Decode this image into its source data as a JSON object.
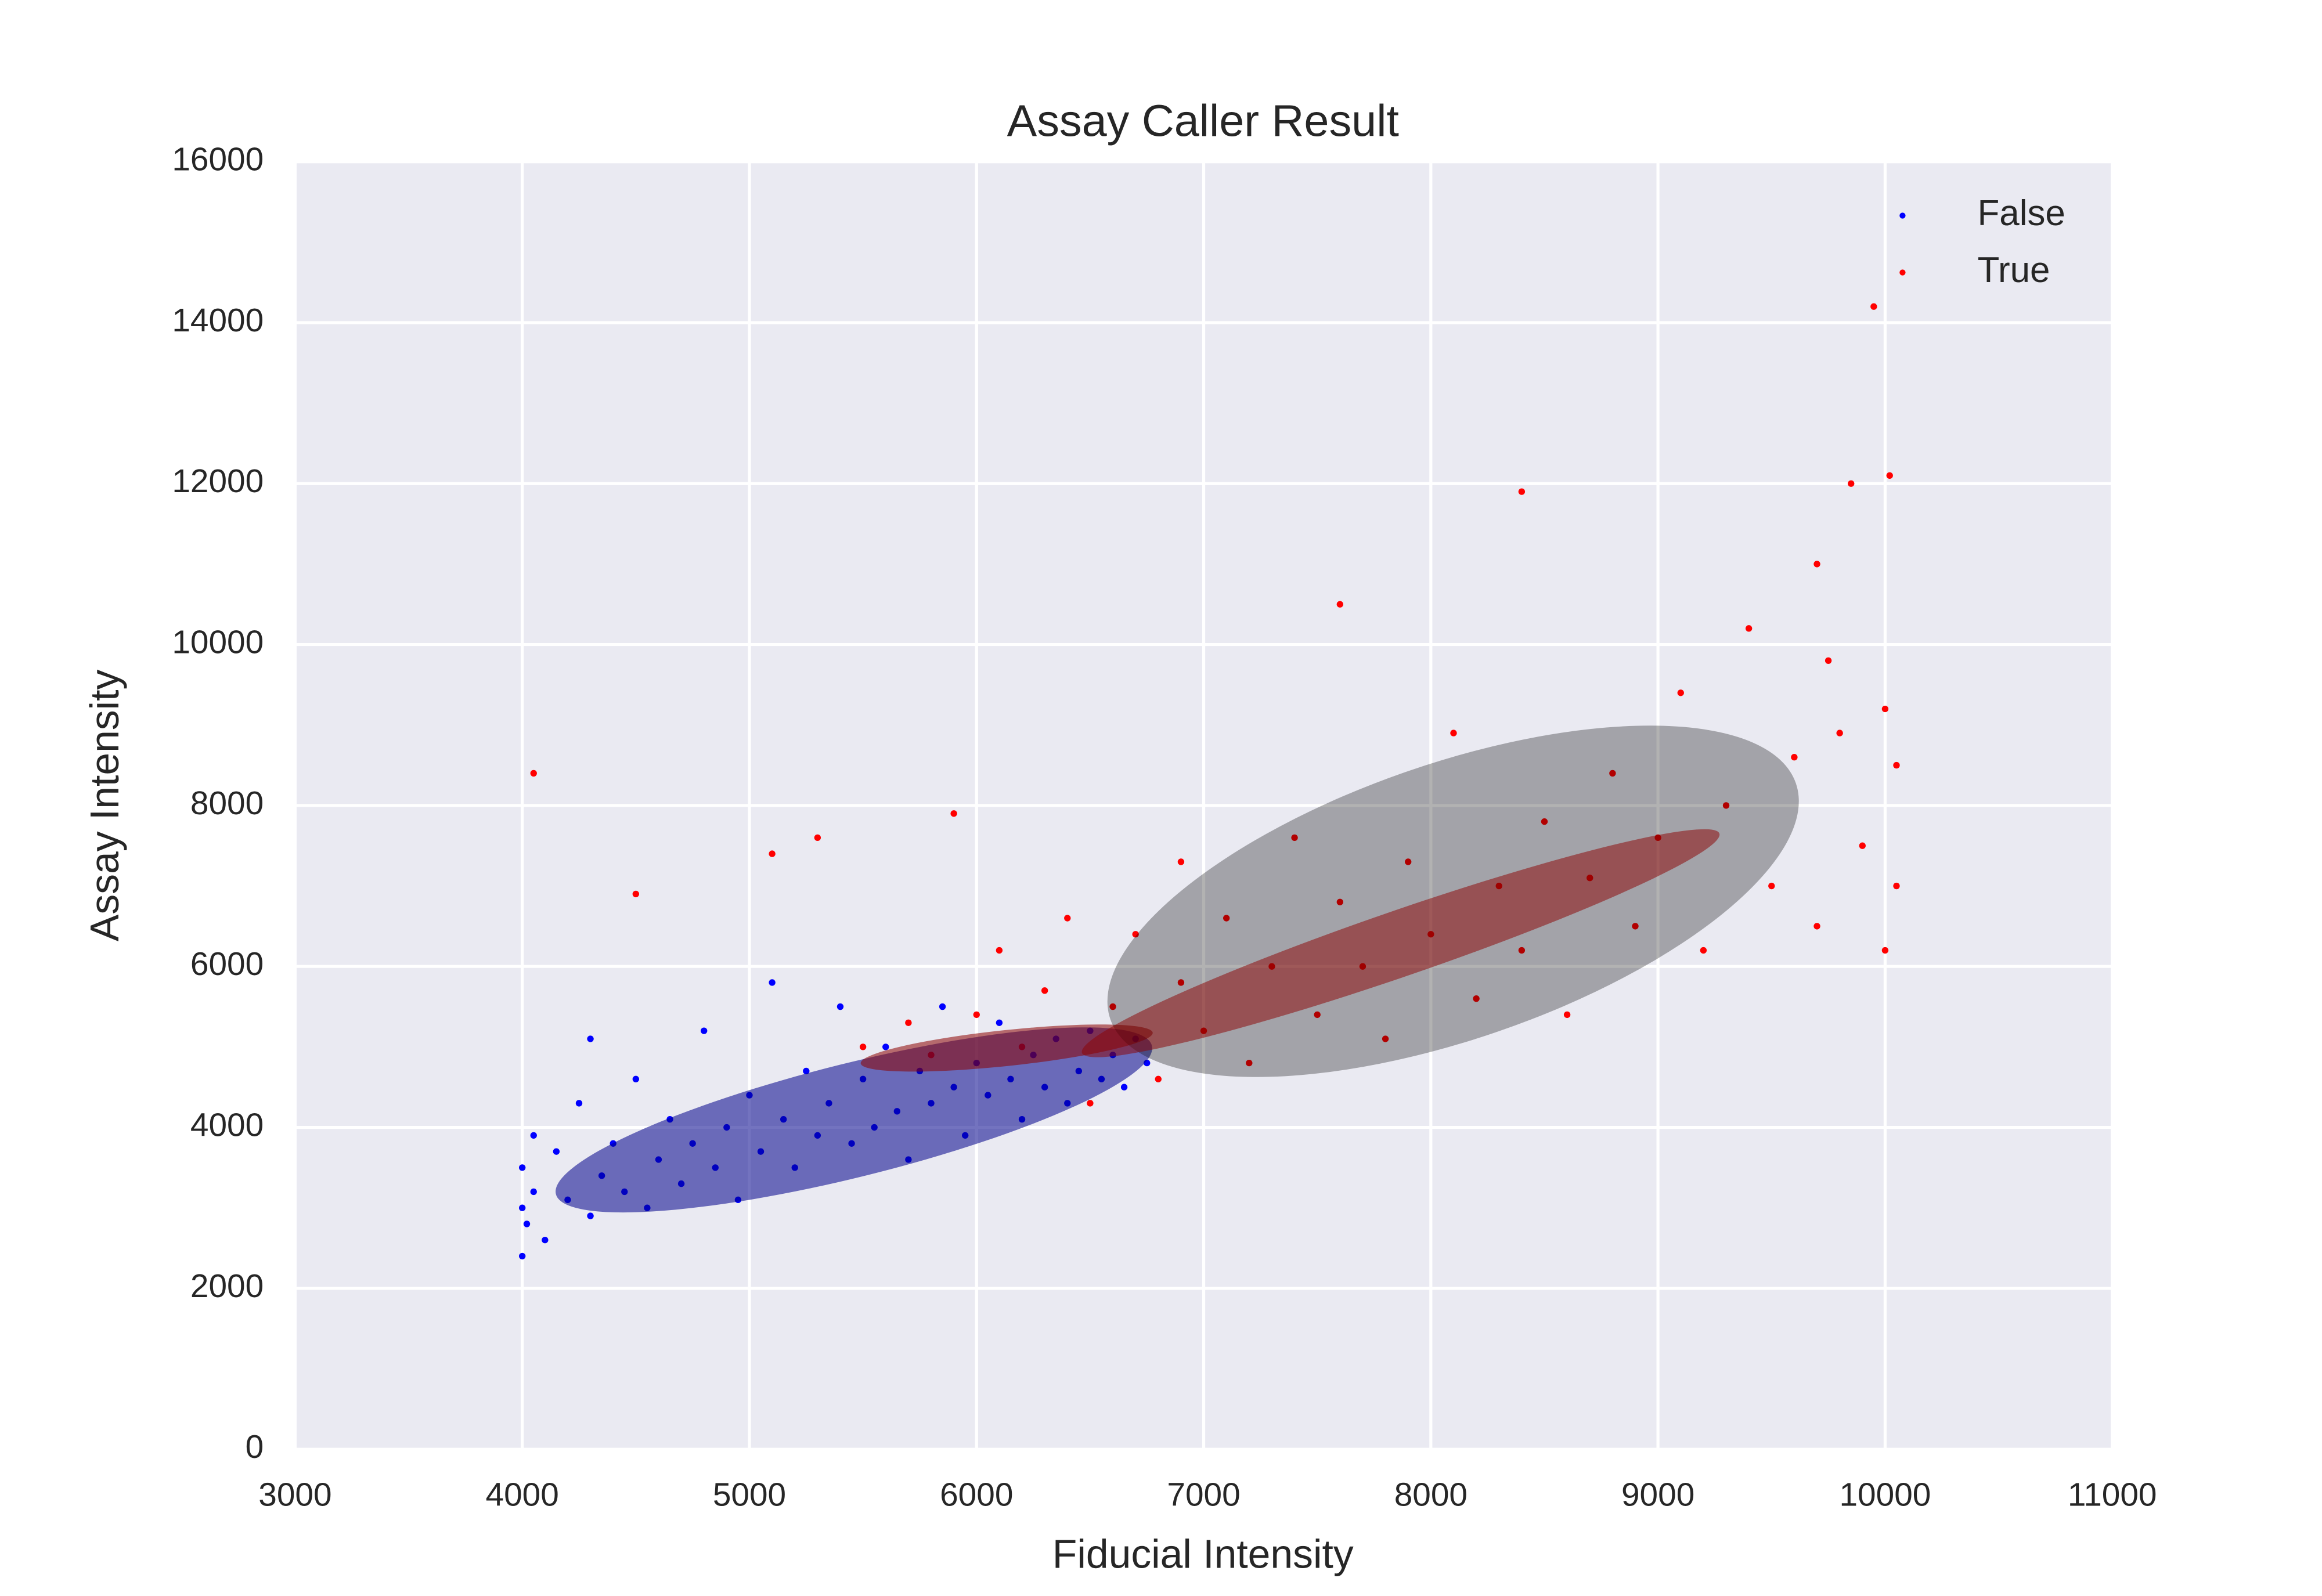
{
  "chart_data": {
    "type": "scatter",
    "title": "Assay Caller Result",
    "x_label": "Fiducial Intensity",
    "y_label": "Assay Intensity",
    "xlim": [
      3000,
      11000
    ],
    "ylim": [
      0,
      16000
    ],
    "xticks": [
      3000,
      4000,
      5000,
      6000,
      7000,
      8000,
      9000,
      10000,
      11000
    ],
    "yticks": [
      0,
      2000,
      4000,
      6000,
      8000,
      10000,
      12000,
      14000,
      16000
    ],
    "grid": true,
    "legend": "upper right",
    "series": [
      {
        "name": "False",
        "color": "#0000ff",
        "x": [
          4000,
          4000,
          4000,
          4020,
          4050,
          4100,
          4150,
          4200,
          4250,
          4300,
          4350,
          4400,
          4450,
          4500,
          4550,
          4600,
          4650,
          4700,
          4750,
          4800,
          4850,
          4900,
          4950,
          5000,
          5050,
          5100,
          5150,
          5200,
          5250,
          5300,
          5350,
          5400,
          5450,
          5500,
          5550,
          5600,
          5650,
          5700,
          5750,
          5800,
          5850,
          5900,
          5950,
          6000,
          6050,
          6100,
          6150,
          6200,
          6250,
          6300,
          6350,
          6400,
          6450,
          6500,
          6550,
          6600,
          6650,
          6700,
          6750,
          4300,
          4050
        ],
        "values": [
          2400,
          3000,
          3500,
          2800,
          3200,
          2600,
          3700,
          3100,
          4300,
          2900,
          3400,
          3800,
          3200,
          4600,
          3000,
          3600,
          4100,
          3300,
          3800,
          5200,
          3500,
          4000,
          3100,
          4400,
          3700,
          5800,
          4100,
          3500,
          4700,
          3900,
          4300,
          5500,
          3800,
          4600,
          4000,
          5000,
          4200,
          3600,
          4700,
          4300,
          5500,
          4500,
          3900,
          4800,
          4400,
          5300,
          4600,
          4100,
          4900,
          4500,
          5100,
          4300,
          4700,
          5200,
          4600,
          4900,
          4500,
          5100,
          4800,
          5100,
          3900
        ]
      },
      {
        "name": "True",
        "color": "#ff0000",
        "x": [
          4050,
          4500,
          5100,
          5300,
          5500,
          5700,
          5900,
          5800,
          6000,
          6100,
          6200,
          6300,
          6400,
          6500,
          6600,
          6700,
          6800,
          6900,
          6900,
          7000,
          7100,
          7200,
          7300,
          7400,
          7500,
          7600,
          7600,
          7700,
          7800,
          7900,
          8000,
          8100,
          8200,
          8300,
          8400,
          8400,
          8500,
          8600,
          8700,
          8800,
          8900,
          9000,
          9100,
          9200,
          9300,
          9400,
          9500,
          9600,
          9700,
          9700,
          9800,
          9850,
          9900,
          9950,
          10000,
          10000,
          10020,
          10050,
          10050,
          9750
        ],
        "values": [
          8400,
          6900,
          7400,
          7600,
          5000,
          5300,
          7900,
          4900,
          5400,
          6200,
          5000,
          5700,
          6600,
          4300,
          5500,
          6400,
          4600,
          7300,
          5800,
          5200,
          6600,
          4800,
          6000,
          7600,
          5400,
          10500,
          6800,
          6000,
          5100,
          7300,
          6400,
          8900,
          5600,
          7000,
          11900,
          6200,
          7800,
          5400,
          7100,
          8400,
          6500,
          7600,
          9400,
          6200,
          8000,
          10200,
          7000,
          8600,
          11000,
          6500,
          8900,
          12000,
          7500,
          14200,
          9200,
          6200,
          12100,
          8500,
          7000,
          9800
        ]
      }
    ]
  }
}
